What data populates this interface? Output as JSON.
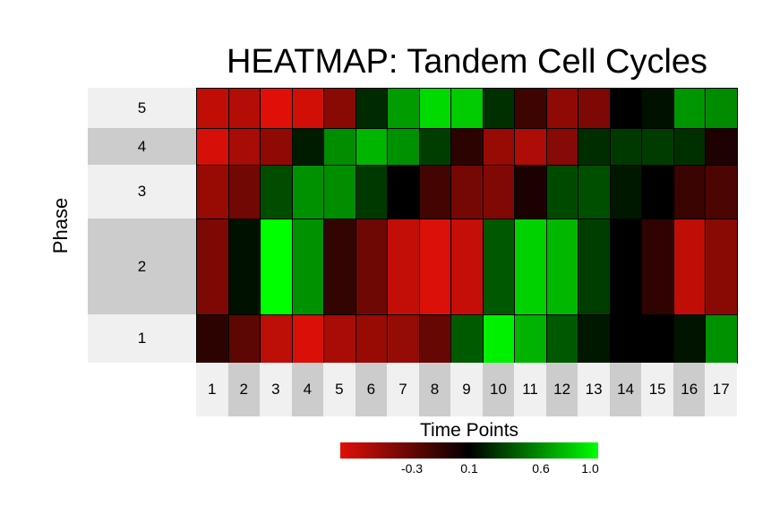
{
  "chart_data": {
    "type": "heatmap",
    "title": "HEATMAP: Tandem Cell Cycles",
    "xlabel": "Time Points",
    "ylabel": "Phase",
    "x": [
      "1",
      "2",
      "3",
      "4",
      "5",
      "6",
      "7",
      "8",
      "9",
      "10",
      "11",
      "12",
      "13",
      "14",
      "15",
      "16",
      "17"
    ],
    "y": [
      "5",
      "4",
      "3",
      "2",
      "1"
    ],
    "colorscale": {
      "low": "#e01008",
      "mid": "#000000",
      "high": "#00ff00",
      "min": -0.8,
      "mid_value": 0.1,
      "max": 1.0
    },
    "legend_ticks": [
      "-0.3",
      "0.1",
      "0.6",
      "1.0"
    ],
    "legend_tick_values": [
      -0.3,
      0.1,
      0.6,
      1.0
    ],
    "values": [
      [
        -0.67,
        -0.62,
        -0.8,
        -0.74,
        -0.45,
        0.25,
        0.65,
        0.87,
        0.82,
        0.27,
        -0.15,
        -0.48,
        -0.4,
        0.1,
        0.16,
        0.63,
        0.59
      ],
      [
        -0.76,
        -0.57,
        -0.48,
        0.2,
        0.6,
        0.74,
        0.61,
        0.32,
        -0.08,
        -0.51,
        -0.6,
        -0.44,
        0.26,
        0.3,
        0.31,
        0.27,
        -0.02
      ],
      [
        -0.51,
        -0.36,
        0.37,
        0.61,
        0.6,
        0.3,
        0.1,
        -0.17,
        -0.37,
        -0.42,
        -0.01,
        0.36,
        0.38,
        0.18,
        0.1,
        -0.13,
        -0.2
      ],
      [
        -0.4,
        0.16,
        1.0,
        0.61,
        -0.1,
        -0.34,
        -0.68,
        -0.78,
        -0.69,
        0.41,
        0.84,
        0.75,
        0.32,
        0.1,
        -0.09,
        -0.67,
        -0.45
      ],
      [
        -0.08,
        -0.27,
        -0.66,
        -0.77,
        -0.58,
        -0.51,
        -0.5,
        -0.31,
        0.42,
        0.95,
        0.73,
        0.41,
        0.18,
        0.1,
        0.1,
        0.17,
        0.61
      ]
    ]
  }
}
